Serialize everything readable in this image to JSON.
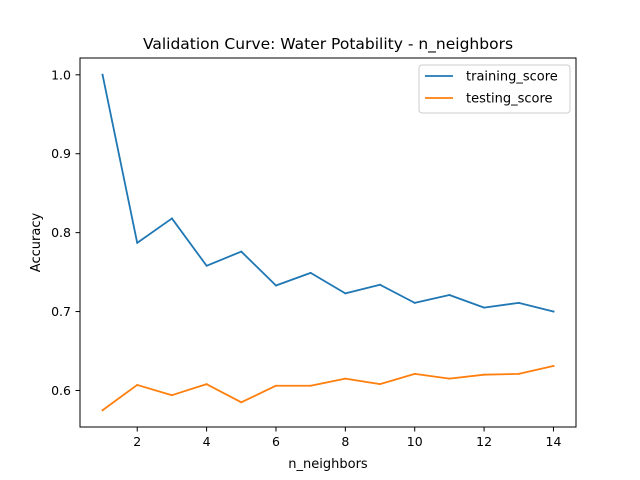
{
  "chart_data": {
    "type": "line",
    "title": "Validation Curve: Water Potability - n_neighbors",
    "xlabel": "n_neighbors",
    "ylabel": "Accuracy",
    "x": [
      1,
      2,
      3,
      4,
      5,
      6,
      7,
      8,
      9,
      10,
      11,
      12,
      13,
      14
    ],
    "xlim": [
      0.35,
      14.65
    ],
    "ylim": [
      0.5537,
      1.0213
    ],
    "xticks": [
      2,
      4,
      6,
      8,
      10,
      12,
      14
    ],
    "yticks": [
      0.6,
      0.7,
      0.8,
      0.9,
      1.0
    ],
    "xtick_labels": [
      "2",
      "4",
      "6",
      "8",
      "10",
      "12",
      "14"
    ],
    "ytick_labels": [
      "0.6",
      "0.7",
      "0.8",
      "0.9",
      "1.0"
    ],
    "grid": false,
    "legend_position": "top-right",
    "series": [
      {
        "name": "training_score",
        "color": "#1f77b4",
        "values": [
          1.0,
          0.787,
          0.818,
          0.758,
          0.776,
          0.733,
          0.749,
          0.723,
          0.734,
          0.711,
          0.721,
          0.705,
          0.711,
          0.7
        ]
      },
      {
        "name": "testing_score",
        "color": "#ff7f0e",
        "values": [
          0.575,
          0.607,
          0.594,
          0.608,
          0.585,
          0.606,
          0.606,
          0.615,
          0.608,
          0.621,
          0.615,
          0.62,
          0.621,
          0.631
        ]
      }
    ]
  }
}
